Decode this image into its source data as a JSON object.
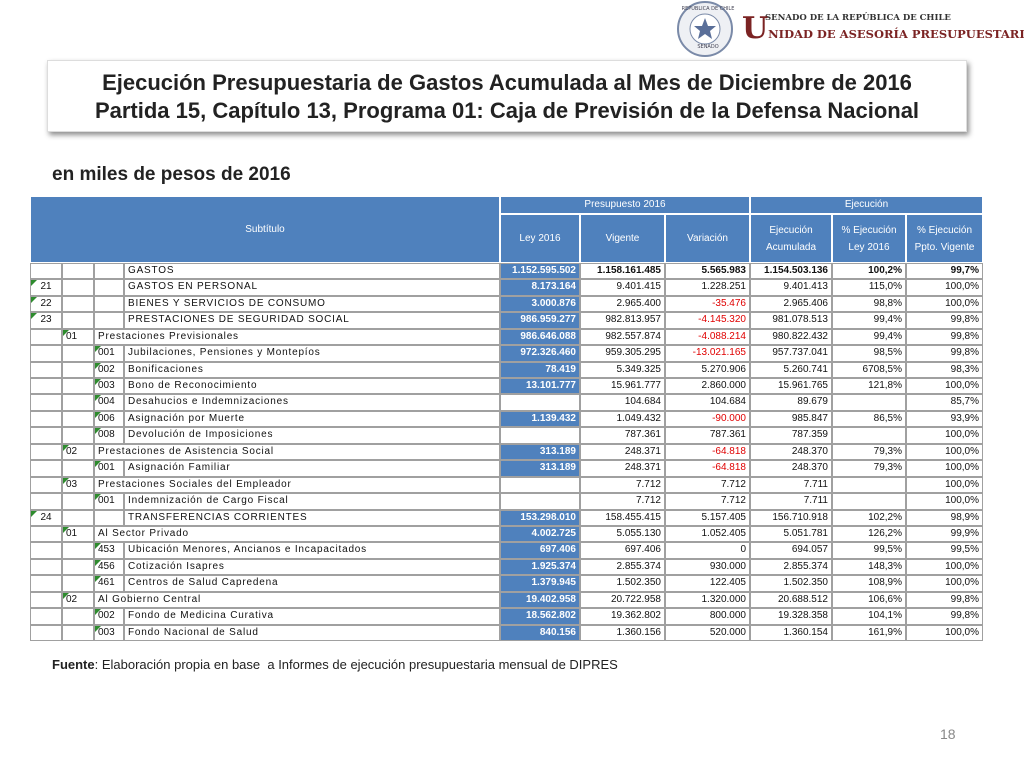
{
  "header": {
    "seal_top": "REPÚBLICA DE CHILE",
    "seal_bottom": "SENADO",
    "org_top": "SENADO DE LA REPÚBLICA DE CHILE",
    "org_main": "UNIDAD DE ASESORÍA PRESUPUESTARIA"
  },
  "title": {
    "line1": "Ejecución Presupuestaria de Gastos Acumulada al Mes de Diciembre de 2016",
    "line2": "Partida 15, Capítulo 13, Programa 01: Caja de Previsión de la Defensa Nacional"
  },
  "subtitle": "en miles de pesos de 2016",
  "table": {
    "group_headers": [
      "Subtítulo",
      "Presupuesto 2016",
      "Ejecución"
    ],
    "headers": [
      "Ley 2016",
      "Vigente",
      "Variación",
      "Ejecución Acumulada",
      "% Ejecución Ley 2016",
      "% Ejecución Ppto. Vigente"
    ],
    "rows": [
      [
        null,
        null,
        null,
        "GASTOS",
        "1.152.595.502",
        "1.158.161.485",
        "5.565.983",
        "1.154.503.136",
        "100,2%",
        "99,7%"
      ],
      [
        "21",
        null,
        null,
        "GASTOS EN PERSONAL",
        "8.173.164",
        "9.401.415",
        "1.228.251",
        "9.401.413",
        "115,0%",
        "100,0%"
      ],
      [
        "22",
        null,
        null,
        "BIENES Y SERVICIOS DE CONSUMO",
        "3.000.876",
        "2.965.400",
        "-35.476",
        "2.965.406",
        "98,8%",
        "100,0%"
      ],
      [
        "23",
        null,
        null,
        "PRESTACIONES DE SEGURIDAD SOCIAL",
        "986.959.277",
        "982.813.957",
        "-4.145.320",
        "981.078.513",
        "99,4%",
        "99,8%"
      ],
      [
        null,
        "01",
        null,
        "Prestaciones Previsionales",
        "986.646.088",
        "982.557.874",
        "-4.088.214",
        "980.822.432",
        "99,4%",
        "99,8%"
      ],
      [
        null,
        null,
        "001",
        "Jubilaciones, Pensiones y Montepíos",
        "972.326.460",
        "959.305.295",
        "-13.021.165",
        "957.737.041",
        "98,5%",
        "99,8%"
      ],
      [
        null,
        null,
        "002",
        "Bonificaciones",
        "78.419",
        "5.349.325",
        "5.270.906",
        "5.260.741",
        "6708,5%",
        "98,3%"
      ],
      [
        null,
        null,
        "003",
        "Bono de Reconocimiento",
        "13.101.777",
        "15.961.777",
        "2.860.000",
        "15.961.765",
        "121,8%",
        "100,0%"
      ],
      [
        null,
        null,
        "004",
        "Desahucios e Indemnizaciones",
        null,
        "104.684",
        "104.684",
        "89.679",
        null,
        "85,7%"
      ],
      [
        null,
        null,
        "006",
        "Asignación por Muerte",
        "1.139.432",
        "1.049.432",
        "-90.000",
        "985.847",
        "86,5%",
        "93,9%"
      ],
      [
        null,
        null,
        "008",
        "Devolución de Imposiciones",
        null,
        "787.361",
        "787.361",
        "787.359",
        null,
        "100,0%"
      ],
      [
        null,
        "02",
        null,
        "Prestaciones de Asistencia Social",
        "313.189",
        "248.371",
        "-64.818",
        "248.370",
        "79,3%",
        "100,0%"
      ],
      [
        null,
        null,
        "001",
        "Asignación Familiar",
        "313.189",
        "248.371",
        "-64.818",
        "248.370",
        "79,3%",
        "100,0%"
      ],
      [
        null,
        "03",
        null,
        "Prestaciones Sociales del Empleador",
        null,
        "7.712",
        "7.712",
        "7.711",
        null,
        "100,0%"
      ],
      [
        null,
        null,
        "001",
        "Indemnización de Cargo Fiscal",
        null,
        "7.712",
        "7.712",
        "7.711",
        null,
        "100,0%"
      ],
      [
        "24",
        null,
        null,
        "TRANSFERENCIAS CORRIENTES",
        "153.298.010",
        "158.455.415",
        "5.157.405",
        "156.710.918",
        "102,2%",
        "98,9%"
      ],
      [
        null,
        "01",
        null,
        "Al Sector Privado",
        "4.002.725",
        "5.055.130",
        "1.052.405",
        "5.051.781",
        "126,2%",
        "99,9%"
      ],
      [
        null,
        null,
        "453",
        "Ubicación Menores, Ancianos e Incapacitados",
        "697.406",
        "697.406",
        "0",
        "694.057",
        "99,5%",
        "99,5%"
      ],
      [
        null,
        null,
        "456",
        "Cotización Isapres",
        "1.925.374",
        "2.855.374",
        "930.000",
        "2.855.374",
        "148,3%",
        "100,0%"
      ],
      [
        null,
        null,
        "461",
        "Centros de Salud Capredena",
        "1.379.945",
        "1.502.350",
        "122.405",
        "1.502.350",
        "108,9%",
        "100,0%"
      ],
      [
        null,
        "02",
        null,
        "Al Gobierno Central",
        "19.402.958",
        "20.722.958",
        "1.320.000",
        "20.688.512",
        "106,6%",
        "99,8%"
      ],
      [
        null,
        null,
        "002",
        "Fondo de Medicina Curativa",
        "18.562.802",
        "19.362.802",
        "800.000",
        "19.328.358",
        "104,1%",
        "99,8%"
      ],
      [
        null,
        null,
        "003",
        "Fondo Nacional de Salud",
        "840.156",
        "1.360.156",
        "520.000",
        "1.360.154",
        "161,9%",
        "100,0%"
      ]
    ]
  },
  "footer": {
    "label": "Fuente",
    "text": ": Elaboración propia en base  a Informes de ejecución presupuestaria mensual de DIPRES"
  },
  "page_number": "18"
}
